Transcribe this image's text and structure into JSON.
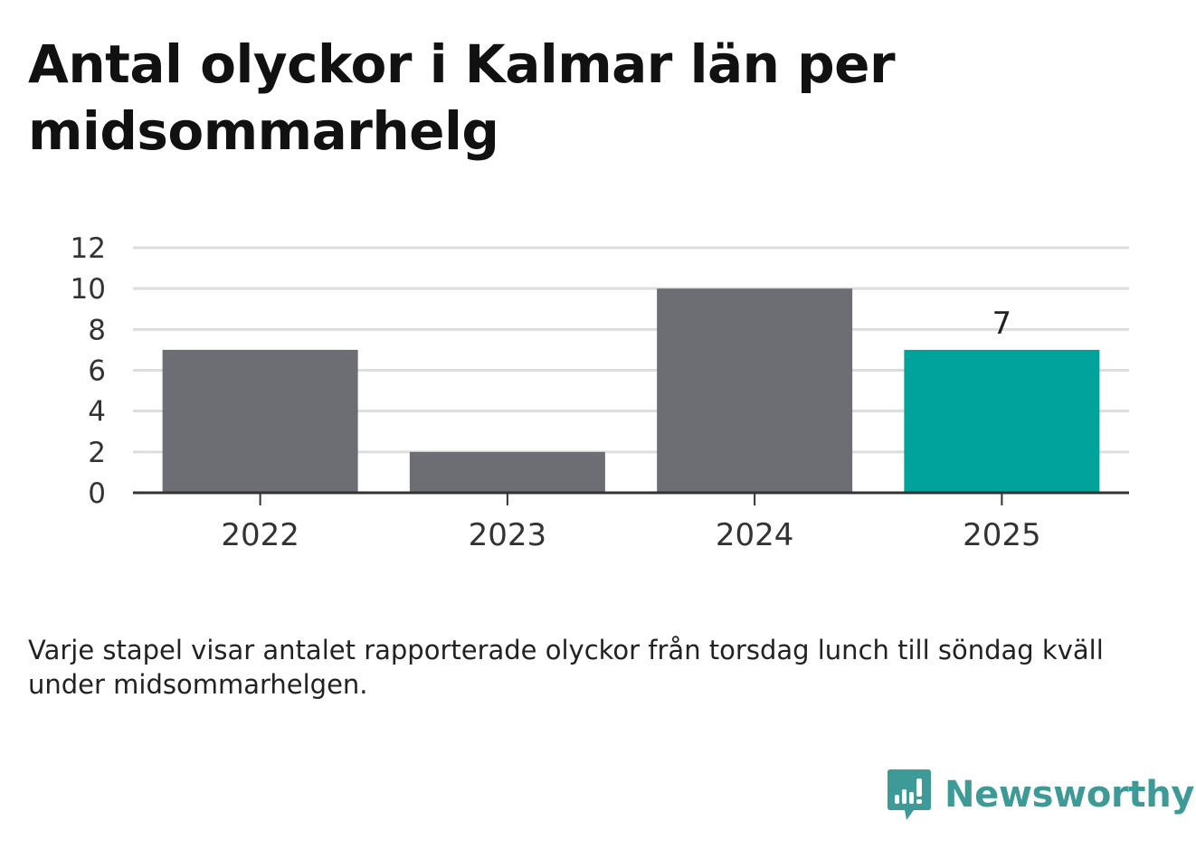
{
  "title": "Antal olyckor i Kalmar län per midsommarhelg",
  "note": "Varje stapel visar antalet rapporterade olyckor från torsdag lunch till söndag kväll under midsommarhelgen.",
  "brand": {
    "name": "Newsworthy",
    "icon": "newsworthy-logo-icon",
    "color": "#3d9a96"
  },
  "colors": {
    "bar": "#6d6d74",
    "highlight": "#00a39b",
    "grid": "#dddddd",
    "axis": "#333333"
  },
  "chart_data": {
    "type": "bar",
    "categories": [
      "2022",
      "2023",
      "2024",
      "2025"
    ],
    "values": [
      7,
      2,
      10,
      7
    ],
    "highlight_index": 3,
    "data_labels": [
      "",
      "",
      "",
      "7"
    ],
    "yticks": [
      "0",
      "2",
      "4",
      "6",
      "8",
      "10",
      "12"
    ],
    "ylim": [
      0,
      12
    ],
    "grid": true,
    "legend": "none",
    "xlabel": "",
    "ylabel": ""
  }
}
